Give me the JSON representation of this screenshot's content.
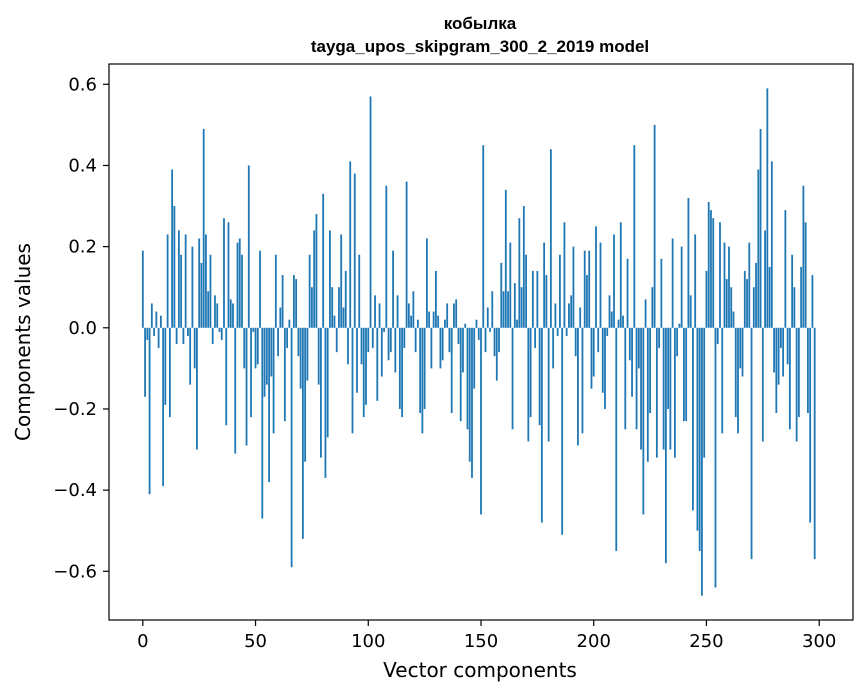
{
  "chart_data": {
    "type": "bar",
    "title_line1": "кобылка",
    "title_line2": "tayga_upos_skipgram_300_2_2019 model",
    "xlabel": "Vector components",
    "ylabel": "Components values",
    "xlim": [
      -15,
      315
    ],
    "ylim": [
      -0.72,
      0.65
    ],
    "x_ticks": [
      0,
      50,
      100,
      150,
      200,
      250,
      300
    ],
    "x_tick_labels": [
      "0",
      "50",
      "100",
      "150",
      "200",
      "250",
      "300"
    ],
    "y_ticks": [
      -0.6,
      -0.4,
      -0.2,
      0.0,
      0.2,
      0.4,
      0.6
    ],
    "y_tick_labels": [
      "−0.6",
      "−0.4",
      "−0.2",
      "0.0",
      "0.2",
      "0.4",
      "0.6"
    ],
    "bar_color": "#1f77b4",
    "values": [
      0.19,
      -0.17,
      -0.03,
      -0.41,
      0.06,
      -0.02,
      0.04,
      -0.05,
      0.03,
      -0.39,
      -0.19,
      0.23,
      -0.22,
      0.39,
      0.3,
      -0.04,
      0.24,
      0.18,
      -0.04,
      0.23,
      -0.02,
      -0.14,
      0.2,
      -0.1,
      -0.3,
      0.22,
      0.16,
      0.49,
      0.23,
      0.09,
      0.18,
      -0.04,
      0.08,
      0.06,
      -0.01,
      -0.03,
      0.27,
      -0.24,
      0.26,
      0.07,
      0.06,
      -0.31,
      0.21,
      0.22,
      0.18,
      -0.1,
      -0.29,
      0.4,
      -0.22,
      -0.01,
      -0.1,
      -0.09,
      0.19,
      -0.47,
      -0.17,
      -0.14,
      -0.38,
      -0.12,
      -0.26,
      0.18,
      -0.07,
      0.05,
      0.13,
      -0.23,
      -0.05,
      0.02,
      -0.59,
      0.13,
      0.12,
      -0.07,
      -0.15,
      -0.52,
      -0.33,
      -0.13,
      0.18,
      0.1,
      0.24,
      0.28,
      -0.14,
      -0.32,
      0.33,
      -0.37,
      -0.27,
      0.24,
      0.1,
      0.03,
      -0.06,
      0.1,
      0.23,
      0.05,
      0.14,
      -0.09,
      0.41,
      -0.26,
      0.38,
      -0.16,
      0.18,
      -0.09,
      -0.22,
      -0.19,
      -0.06,
      0.57,
      -0.05,
      0.08,
      -0.18,
      0.06,
      -0.12,
      -0.01,
      0.35,
      -0.08,
      -0.06,
      0.19,
      -0.11,
      0.08,
      -0.2,
      -0.22,
      -0.05,
      0.36,
      0.06,
      0.03,
      0.09,
      -0.06,
      0.02,
      -0.21,
      -0.26,
      -0.2,
      0.22,
      0.04,
      -0.1,
      0.04,
      0.14,
      0.03,
      -0.1,
      -0.08,
      0.02,
      0.06,
      -0.06,
      -0.21,
      0.06,
      0.07,
      -0.04,
      -0.23,
      -0.11,
      0.01,
      -0.25,
      -0.33,
      -0.37,
      -0.15,
      0.02,
      -0.03,
      -0.46,
      0.45,
      -0.06,
      0.05,
      -0.01,
      0.09,
      -0.07,
      -0.13,
      -0.06,
      0.16,
      0.09,
      0.34,
      0.09,
      0.21,
      -0.25,
      0.11,
      0.02,
      0.27,
      0.1,
      0.3,
      0.18,
      -0.28,
      -0.22,
      0.14,
      -0.05,
      0.14,
      -0.24,
      -0.48,
      0.21,
      0.13,
      -0.28,
      0.44,
      -0.1,
      0.06,
      -0.02,
      0.18,
      -0.51,
      0.26,
      -0.02,
      0.06,
      0.08,
      0.2,
      -0.07,
      -0.29,
      0.05,
      -0.26,
      0.19,
      0.13,
      0.19,
      -0.15,
      -0.12,
      0.25,
      -0.06,
      0.21,
      -0.16,
      -0.2,
      -0.02,
      0.08,
      0.04,
      0.23,
      -0.55,
      0.02,
      0.26,
      0.03,
      -0.25,
      0.17,
      -0.08,
      -0.17,
      0.45,
      -0.25,
      -0.1,
      -0.3,
      -0.46,
      0.07,
      -0.33,
      -0.21,
      0.1,
      0.5,
      -0.32,
      -0.05,
      0.17,
      -0.3,
      -0.58,
      -0.2,
      -0.3,
      0.22,
      -0.32,
      -0.07,
      0.01,
      0.2,
      -0.23,
      -0.23,
      0.32,
      0.08,
      -0.45,
      0.23,
      -0.5,
      -0.55,
      -0.66,
      -0.32,
      0.14,
      0.31,
      0.29,
      0.27,
      -0.64,
      -0.04,
      0.26,
      -0.26,
      0.21,
      0.12,
      0.2,
      0.1,
      0.04,
      -0.22,
      -0.26,
      -0.1,
      -0.12,
      0.14,
      0.12,
      0.21,
      -0.57,
      0.1,
      0.16,
      0.39,
      0.49,
      -0.28,
      0.24,
      0.59,
      0.15,
      0.41,
      -0.11,
      -0.21,
      -0.14,
      -0.05,
      -0.12,
      0.29,
      -0.09,
      -0.25,
      0.18,
      0.1,
      -0.28,
      -0.22,
      0.15,
      0.35,
      0.26,
      -0.21,
      -0.48,
      0.13,
      -0.57
    ]
  }
}
